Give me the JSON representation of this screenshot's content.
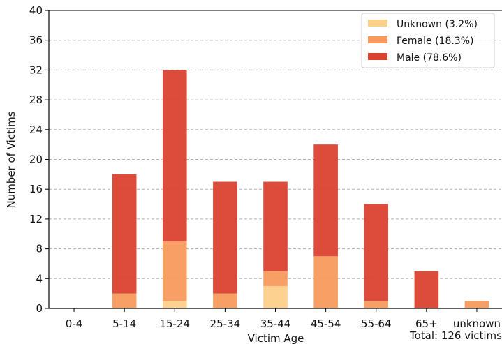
{
  "chart_data": {
    "type": "bar",
    "stacked": true,
    "categories": [
      "0-4",
      "5-14",
      "15-24",
      "25-34",
      "35-44",
      "45-54",
      "55-64",
      "65+",
      "unknown"
    ],
    "series": [
      {
        "name": "Unknown (3.2%)",
        "color": "#fdd08a",
        "values": [
          0,
          0,
          1,
          0,
          3,
          0,
          0,
          0,
          0
        ]
      },
      {
        "name": "Female (18.3%)",
        "color": "#f89a5e",
        "values": [
          0,
          2,
          8,
          2,
          2,
          7,
          1,
          0,
          1
        ]
      },
      {
        "name": "Male (78.6%)",
        "color": "#db4130",
        "values": [
          0,
          16,
          23,
          15,
          12,
          15,
          13,
          5,
          0
        ]
      }
    ],
    "xlabel": "Victim Age",
    "ylabel": "Number of Victims",
    "ylim": [
      0,
      40
    ],
    "yticks": [
      0,
      4,
      8,
      12,
      16,
      20,
      24,
      28,
      32,
      36,
      40
    ],
    "grid": "horizontal dashed",
    "legend": "top-right",
    "annotation": "Total: 126 victims"
  }
}
